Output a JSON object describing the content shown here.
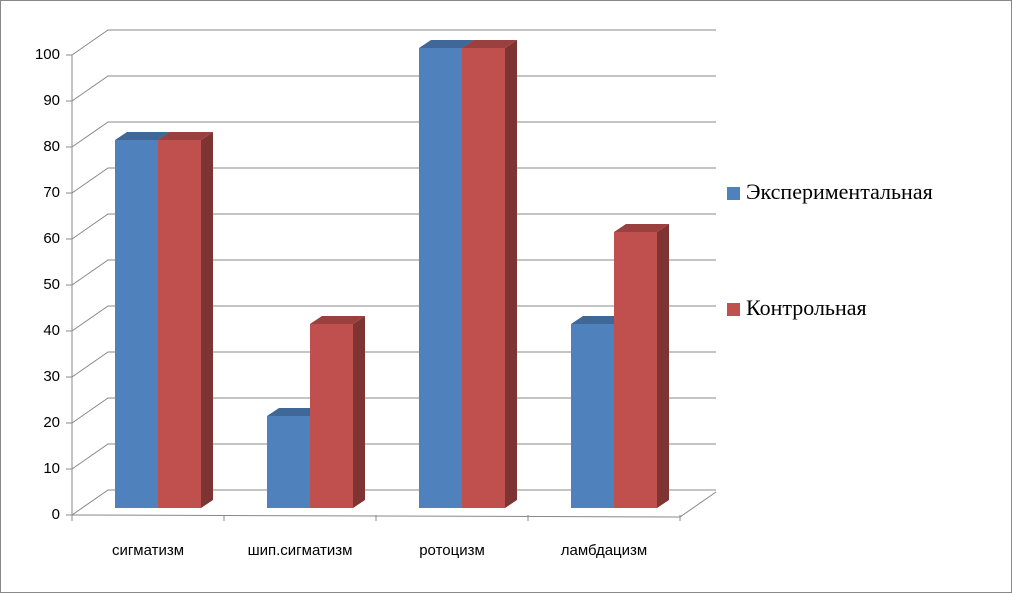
{
  "chart_data": {
    "type": "bar3d",
    "categories": [
      "сигматизм",
      "шип.сигматизм",
      "ротоцизм",
      "ламбдацизм"
    ],
    "series": [
      {
        "name": "Экспериментальная",
        "color": "#4f81bd",
        "values": [
          80,
          20,
          100,
          40
        ]
      },
      {
        "name": "Контрольная",
        "color": "#c0504d",
        "values": [
          80,
          40,
          100,
          60
        ]
      }
    ],
    "ylim": [
      0,
      100
    ],
    "yticks": [
      0,
      10,
      20,
      30,
      40,
      50,
      60,
      70,
      80,
      90,
      100
    ],
    "grid": true,
    "legend": "right"
  }
}
